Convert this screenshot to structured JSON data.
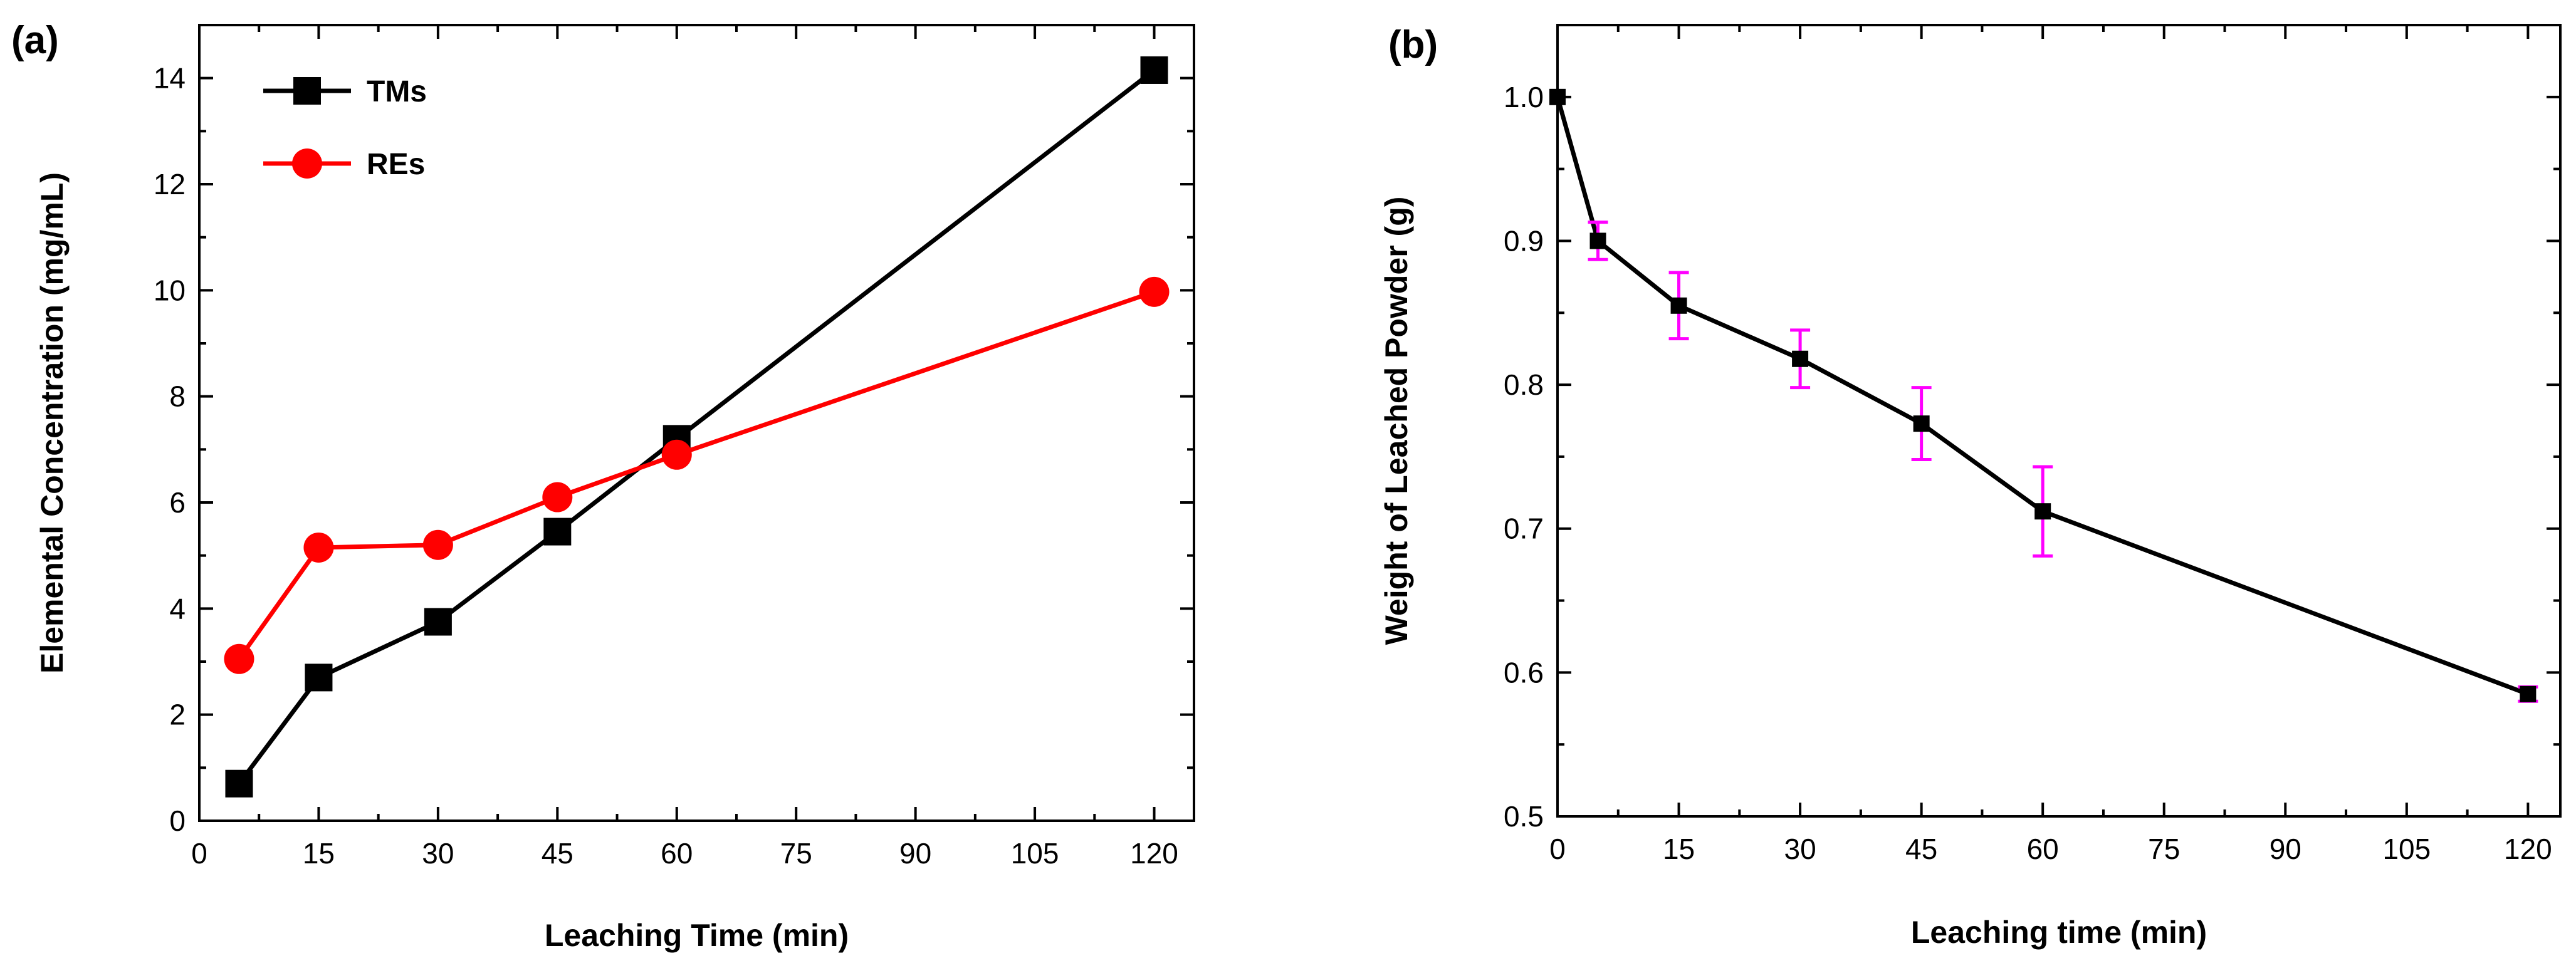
{
  "chart_data": [
    {
      "panel_label": "(a)",
      "type": "line",
      "title": "",
      "xlabel": "Leaching Time (min)",
      "ylabel": "Elemental Concentration (mg/mL)",
      "xlim": [
        0,
        125
      ],
      "ylim": [
        0,
        15
      ],
      "xticks": [
        0,
        15,
        30,
        45,
        60,
        75,
        90,
        105,
        120
      ],
      "yticks": [
        0,
        2,
        4,
        6,
        8,
        10,
        12,
        14
      ],
      "grid": false,
      "legend_position": "top-left",
      "series": [
        {
          "name": "TMs",
          "color": "#000000",
          "marker": "square",
          "x": [
            5,
            15,
            30,
            45,
            60,
            120
          ],
          "y": [
            0.7,
            2.7,
            3.75,
            5.45,
            7.2,
            14.15
          ]
        },
        {
          "name": "REs",
          "color": "#ff0000",
          "marker": "circle",
          "x": [
            5,
            15,
            30,
            45,
            60,
            120
          ],
          "y": [
            3.05,
            5.15,
            5.2,
            6.1,
            6.9,
            9.97
          ]
        }
      ]
    },
    {
      "panel_label": "(b)",
      "type": "line",
      "title": "",
      "xlabel": "Leaching time (min)",
      "ylabel": "Weight of Leached Powder (g)",
      "xlim": [
        0,
        124
      ],
      "ylim": [
        0.5,
        1.05
      ],
      "xticks": [
        0,
        15,
        30,
        45,
        60,
        75,
        90,
        105,
        120
      ],
      "yticks": [
        0.5,
        0.6,
        0.7,
        0.8,
        0.9,
        1.0
      ],
      "ytick_labels": [
        "0.5",
        "0.6",
        "0.7",
        "0.8",
        "0.9",
        "1.0"
      ],
      "grid": false,
      "error_bar_color": "#ff00ff",
      "series": [
        {
          "name": "Weight",
          "color": "#000000",
          "marker": "square",
          "x": [
            0,
            5,
            15,
            30,
            45,
            60,
            120
          ],
          "y": [
            1.0,
            0.9,
            0.855,
            0.818,
            0.773,
            0.712,
            0.585
          ],
          "error": [
            0,
            0.013,
            0.023,
            0.02,
            0.025,
            0.031,
            0.005
          ]
        }
      ]
    }
  ]
}
